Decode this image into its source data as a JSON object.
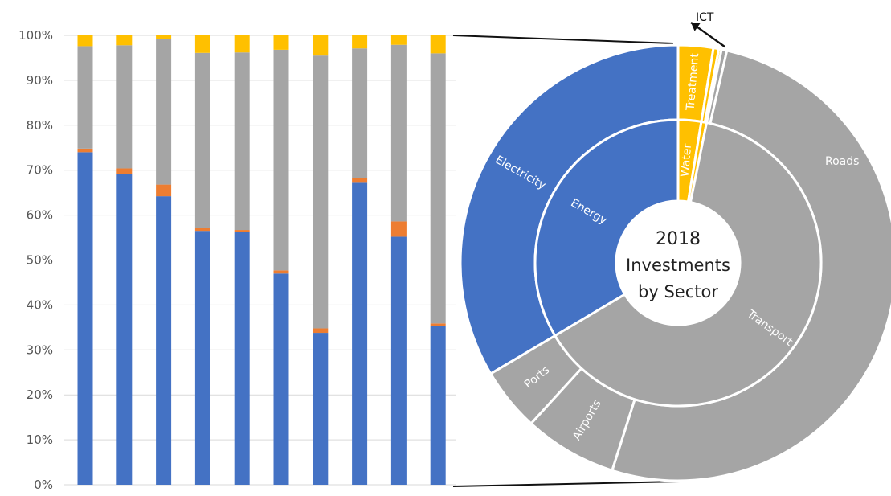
{
  "colors": {
    "blue": "#4472C4",
    "orange": "#ED7D31",
    "gray": "#A5A5A5",
    "gold": "#FFC000",
    "grid": "#D9D9D9",
    "connector": "#111111"
  },
  "chart_data": [
    {
      "type": "bar",
      "stacked": true,
      "percent": true,
      "ylim": [
        0,
        100
      ],
      "grid": true,
      "yticks": [
        "0%",
        "10%",
        "20%",
        "30%",
        "40%",
        "50%",
        "60%",
        "70%",
        "80%",
        "90%",
        "100%"
      ],
      "categories": [
        "",
        "",
        "",
        "",
        "",
        "",
        "",
        "",
        "",
        ""
      ],
      "series": [
        {
          "color": "blue",
          "values": [
            74,
            69.2,
            64.2,
            56.5,
            56.2,
            47,
            33.8,
            67.2,
            55.2,
            35.3
          ]
        },
        {
          "color": "orange",
          "values": [
            0.8,
            1.2,
            2.6,
            0.6,
            0.5,
            0.7,
            1,
            1,
            3.4,
            0.6
          ]
        },
        {
          "color": "gray",
          "values": [
            22.8,
            27.4,
            32.4,
            39,
            39.5,
            49.1,
            60.7,
            28.9,
            39.3,
            60.1
          ]
        },
        {
          "color": "gold",
          "values": [
            2.4,
            2.2,
            0.8,
            3.9,
            3.8,
            3.2,
            4.5,
            2.9,
            2.1,
            4
          ]
        }
      ]
    },
    {
      "type": "pie",
      "style": "sunburst",
      "title_lines": [
        "2018",
        "Investments",
        "by Sector"
      ],
      "inner_ring": [
        {
          "label": "Energy",
          "value": 33.5,
          "color": "blue"
        },
        {
          "label": "Water",
          "value": 2.6,
          "color": "gold"
        },
        {
          "label": "",
          "value": 0.6,
          "color": "gold"
        },
        {
          "label": "Transport",
          "value": 63.3,
          "color": "gray"
        }
      ],
      "outer_ring": [
        {
          "label": "Electricity",
          "value": 33.5,
          "color": "blue"
        },
        {
          "label": "Treatment",
          "value": 2.6,
          "color": "gold"
        },
        {
          "label": "",
          "value": 0.4,
          "color": "gold"
        },
        {
          "label": "",
          "value": 0.2,
          "color": "gold"
        },
        {
          "label": "ICT",
          "value": 0.4,
          "color": "gray"
        },
        {
          "label": "Roads",
          "value": 51.3,
          "color": "gray"
        },
        {
          "label": "Airports",
          "value": 6.9,
          "color": "gray"
        },
        {
          "label": "Ports",
          "value": 4.7,
          "color": "gray"
        }
      ]
    }
  ]
}
